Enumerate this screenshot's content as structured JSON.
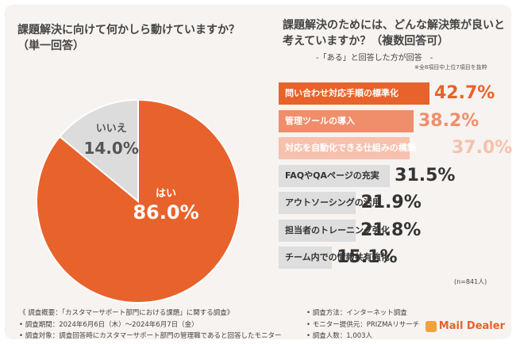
{
  "left": {
    "title_line1": "課題解決に向けて何かしら動けていますか？",
    "title_line2": "（単一回答）"
  },
  "right": {
    "title_line1": "課題解決のためには、どんな解決策が良いと",
    "title_line2": "考えていますか？（複数回答可）",
    "subtitle": "-「ある」と回答した方が回答　-",
    "note": "※全8項目中上位7項目を抜粋",
    "n_label": "(n=841人)"
  },
  "chart_data": [
    {
      "type": "pie",
      "labels": [
        "はい",
        "いいえ"
      ],
      "values": [
        86.0,
        14.0
      ],
      "display_values": [
        "86.0%",
        "14.0%"
      ],
      "colors": [
        "#e8622b",
        "#dcdcdc"
      ],
      "title": "課題解決に向けて何かしら動けていますか？（単一回答）"
    },
    {
      "type": "bar",
      "orientation": "horizontal",
      "categories": [
        "問い合わせ対応手順の標準化",
        "管理ツールの導入",
        "対応を自動化できる仕組みの構築",
        "FAQやQAページの充実",
        "アウトソーシングの活用",
        "担当者のトレーニング強化",
        "チーム内での情報共有強化"
      ],
      "values": [
        42.7,
        38.2,
        37.0,
        31.5,
        21.9,
        21.8,
        15.1
      ],
      "display_values": [
        "42.7%",
        "38.2%",
        "37.0%",
        "31.5%",
        "21.9%",
        "21.8%",
        "15.1%"
      ],
      "colors": [
        "#e8622b",
        "#f08e6c",
        "#f6c1ae",
        "#dedede",
        "#dedede",
        "#dedede",
        "#dedede"
      ],
      "label_colors": [
        "#ffffff",
        "#ffffff",
        "#ffffff",
        "#333333",
        "#333333",
        "#333333",
        "#333333"
      ],
      "value_colors": [
        "#e8622b",
        "#f08e6c",
        "#f6c1ae",
        "#333333",
        "#333333",
        "#333333",
        "#333333"
      ],
      "title": "課題解決のためには、どんな解決策が良いと考えていますか？（複数回答可）"
    }
  ],
  "footer": {
    "left": [
      "《 調査概要：「カスタマーサポート部門における課題」に関する調査》",
      "• 調査期間：2024年6月6日（木）〜2024年6月7日（金）",
      "• 調査対象：調査回答時にカスタマーサポート部門の管理職であると回答したモニター"
    ],
    "right": [
      "• 調査方法：インターネット調査",
      "• モニター提供元：PRIZMAリサーチ",
      "• 調査人数：1,003人"
    ],
    "logo_text": "Mail Dealer"
  }
}
